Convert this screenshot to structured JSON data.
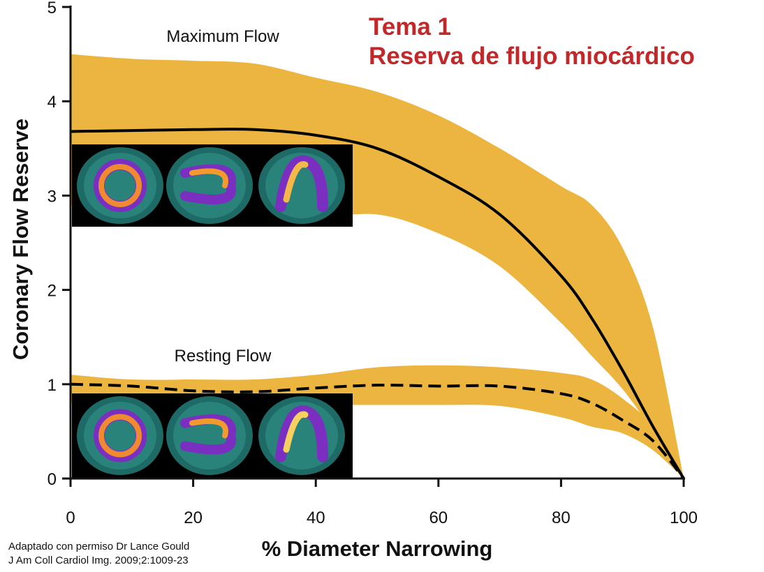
{
  "slide_title": {
    "line1": "Tema 1",
    "line2": "Reserva de flujo miocárdico"
  },
  "citation": {
    "line1": "Adaptado con permiso Dr Lance Gould",
    "line2": "J Am Coll Cardiol Img. 2009;2:1009-23"
  },
  "colors": {
    "band": "#ecb53f",
    "line": "#000000",
    "title": "#c0282a",
    "scan_bg": "#000000"
  },
  "images": {
    "top_row": [
      "pet-scan-stress-1",
      "pet-scan-stress-2",
      "pet-scan-stress-3"
    ],
    "bottom_row": [
      "pet-scan-rest-1",
      "pet-scan-rest-2",
      "pet-scan-rest-3"
    ]
  },
  "chart_data": {
    "type": "line",
    "title": "",
    "xlabel": "% Diameter Narrowing",
    "ylabel": "Coronary Flow Reserve",
    "xlim": [
      0,
      100
    ],
    "ylim": [
      0,
      5
    ],
    "xticks": [
      "0",
      "20",
      "40",
      "60",
      "80",
      "100"
    ],
    "yticks": [
      "0",
      "1",
      "2",
      "3",
      "4",
      "5"
    ],
    "grid": false,
    "series": [
      {
        "name": "Maximum Flow",
        "style": "solid",
        "x": [
          0,
          10,
          20,
          30,
          40,
          50,
          60,
          70,
          80,
          85,
          90,
          95,
          100
        ],
        "y": [
          3.68,
          3.69,
          3.7,
          3.7,
          3.64,
          3.5,
          3.2,
          2.8,
          2.15,
          1.7,
          1.15,
          0.55,
          0
        ],
        "band_upper": [
          4.5,
          4.45,
          4.43,
          4.4,
          4.25,
          4.1,
          3.85,
          3.5,
          3.1,
          2.9,
          2.45,
          1.6,
          0
        ],
        "band_lower": [
          2.9,
          2.75,
          2.7,
          2.68,
          2.75,
          2.8,
          2.6,
          2.25,
          1.65,
          1.3,
          0.95,
          0.5,
          0
        ]
      },
      {
        "name": "Resting Flow",
        "style": "dashed",
        "x": [
          0,
          10,
          20,
          30,
          40,
          50,
          60,
          70,
          80,
          85,
          90,
          95,
          100
        ],
        "y": [
          1.0,
          0.98,
          0.93,
          0.92,
          0.96,
          0.99,
          0.98,
          0.98,
          0.9,
          0.8,
          0.62,
          0.4,
          0
        ],
        "band_upper": [
          1.1,
          1.05,
          1.05,
          1.05,
          1.1,
          1.18,
          1.2,
          1.18,
          1.12,
          1.05,
          0.85,
          0.55,
          0
        ],
        "band_lower": [
          0.8,
          0.77,
          0.76,
          0.77,
          0.78,
          0.78,
          0.78,
          0.77,
          0.65,
          0.55,
          0.48,
          0.3,
          0
        ]
      }
    ]
  }
}
